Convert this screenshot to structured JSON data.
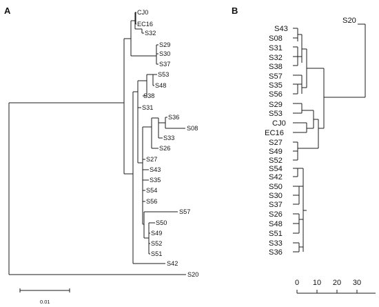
{
  "panels": {
    "a": {
      "label": "A",
      "scale_label": "0.01"
    },
    "b": {
      "label": "B",
      "axis_ticks": [
        "0",
        "10",
        "20",
        "30"
      ]
    }
  },
  "tree_a": {
    "leaves": [
      "CJ0",
      "EC16",
      "S32",
      "S29",
      "S30",
      "S37",
      "S53",
      "S48",
      "S38",
      "S31",
      "S36",
      "S08",
      "S33",
      "S26",
      "S27",
      "S43",
      "S35",
      "S54",
      "S56",
      "S57",
      "S50",
      "S49",
      "S52",
      "S51",
      "S42",
      "S20"
    ]
  },
  "tree_b": {
    "leaves": [
      "S20",
      "S43",
      "S08",
      "S31",
      "S32",
      "S38",
      "S57",
      "S35",
      "S56",
      "S29",
      "S53",
      "CJ0",
      "EC16",
      "S27",
      "S49",
      "S52",
      "S54",
      "S42",
      "S50",
      "S30",
      "S37",
      "S26",
      "S48",
      "S51",
      "S33",
      "S36"
    ]
  }
}
